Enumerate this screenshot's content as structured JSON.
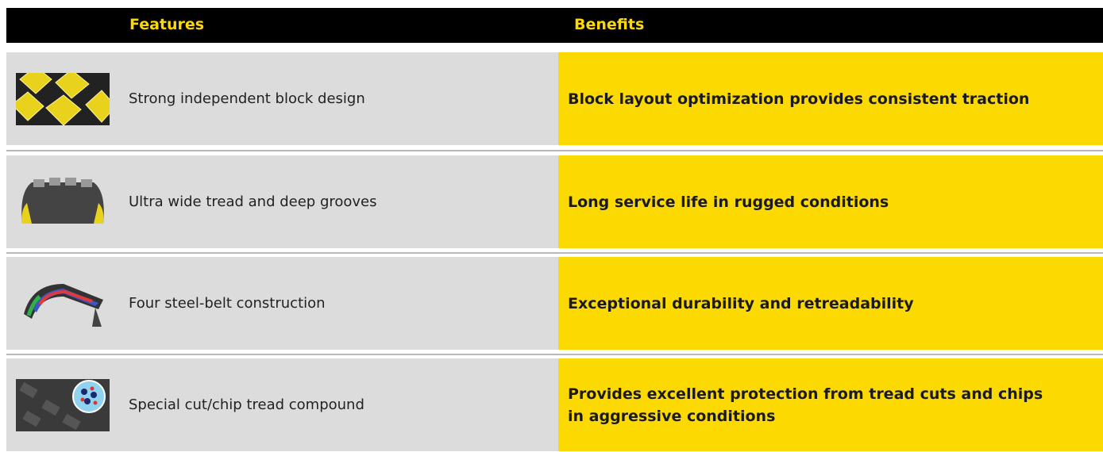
{
  "header": {
    "features": "Features",
    "benefits": "Benefits"
  },
  "rows": [
    {
      "feature": "Strong independent block design",
      "benefit": "Block layout optimization provides consistent traction"
    },
    {
      "feature": "Ultra wide tread and deep grooves",
      "benefit": "Long service life in rugged conditions"
    },
    {
      "feature": "Four steel-belt construction",
      "benefit": "Exceptional durability and retreadability"
    },
    {
      "feature": "Special cut/chip tread compound",
      "benefit": "Provides excellent protection from tread cuts and chips in aggressive conditions"
    }
  ]
}
